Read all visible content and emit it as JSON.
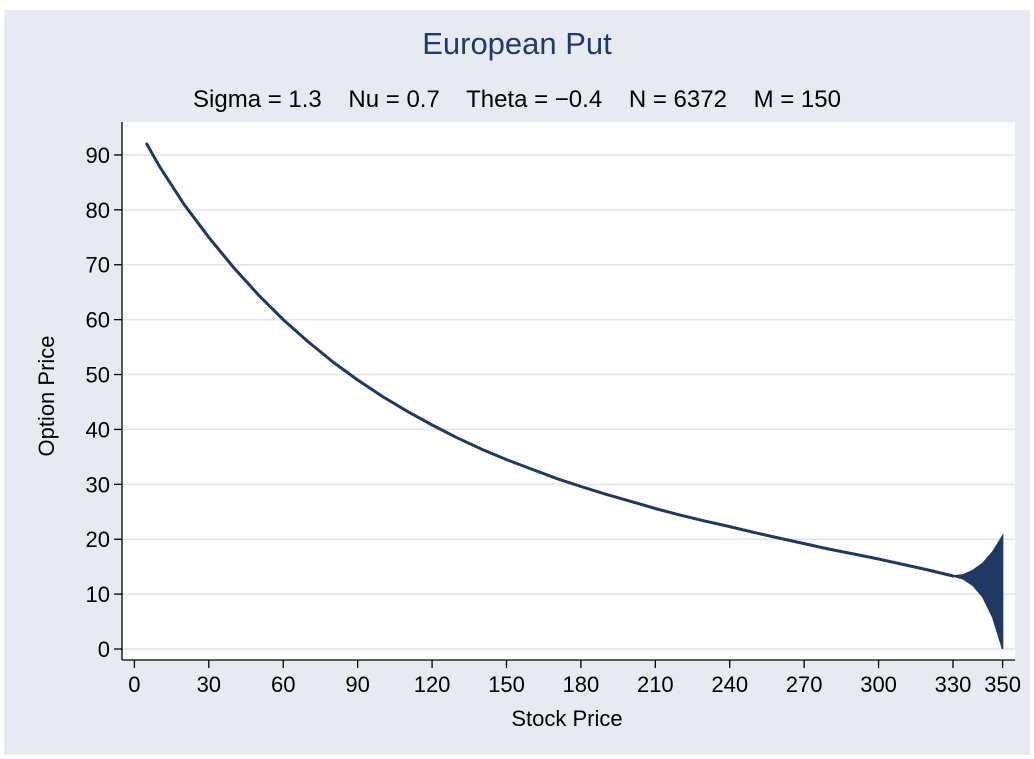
{
  "chart_data": {
    "type": "line",
    "title": "European Put",
    "subtitle": "Sigma = 1.3    Nu = 0.7    Theta = −0.4    N = 6372    M = 150",
    "xlabel": "Stock Price",
    "ylabel": "Option Price",
    "xlim": [
      -5,
      355
    ],
    "ylim": [
      -2,
      96
    ],
    "xticks": [
      0,
      30,
      60,
      90,
      120,
      150,
      180,
      210,
      240,
      270,
      300,
      330,
      350
    ],
    "yticks": [
      0,
      10,
      20,
      30,
      40,
      50,
      60,
      70,
      80,
      90
    ],
    "grid": "horizontal",
    "legend": "none",
    "line_color": "#1f3864",
    "series": [
      {
        "x": [
          5,
          10,
          20,
          30,
          40,
          50,
          60,
          70,
          80,
          90,
          100,
          110,
          120,
          130,
          140,
          150,
          160,
          170,
          180,
          190,
          200,
          210,
          220,
          230,
          240,
          250,
          260,
          270,
          280,
          290,
          300,
          310,
          320,
          330
        ],
        "y": [
          92,
          88,
          81,
          75,
          69.5,
          64.5,
          60,
          56,
          52.3,
          49,
          46,
          43.3,
          40.8,
          38.5,
          36.4,
          34.5,
          32.8,
          31.1,
          29.6,
          28.2,
          26.9,
          25.6,
          24.4,
          23.3,
          22.3,
          21.2,
          20.2,
          19.2,
          18.2,
          17.3,
          16.4,
          15.4,
          14.4,
          13.3
        ]
      }
    ],
    "oscillation_band": {
      "x": [
        330,
        334,
        338,
        342,
        346,
        350
      ],
      "upper": [
        13.3,
        13.5,
        14.3,
        15.6,
        17.7,
        20.6
      ],
      "lower": [
        13.3,
        12.8,
        11.6,
        9.5,
        5.8,
        0
      ]
    }
  }
}
